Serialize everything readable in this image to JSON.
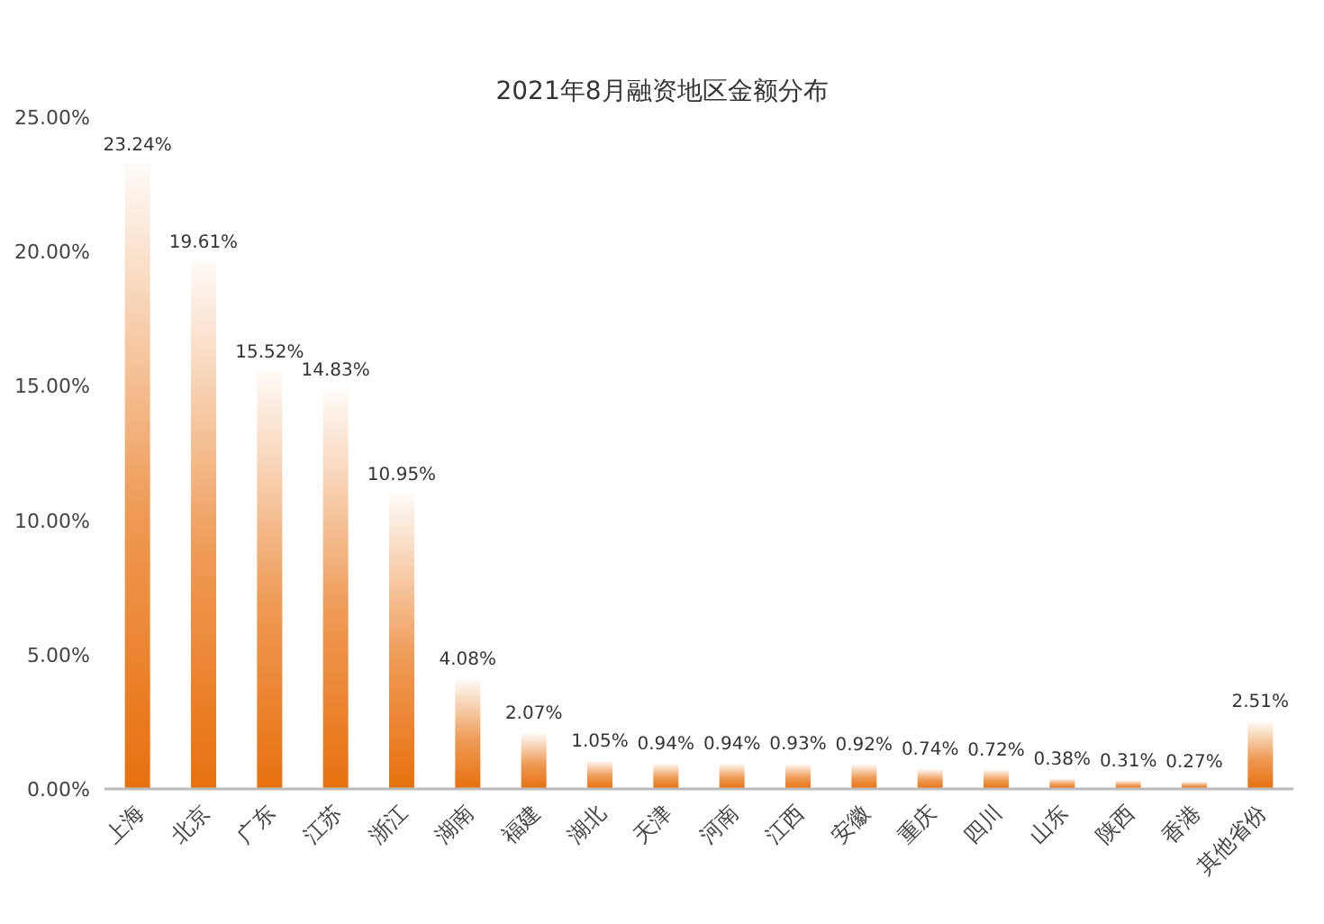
{
  "chart_data": {
    "type": "bar",
    "title": "2021年8月融资地区金额分布",
    "categories": [
      "上海",
      "北京",
      "广东",
      "江苏",
      "浙江",
      "湖南",
      "福建",
      "湖北",
      "天津",
      "河南",
      "江西",
      "安徽",
      "重庆",
      "四川",
      "山东",
      "陕西",
      "香港",
      "其他省份"
    ],
    "values": [
      23.24,
      19.61,
      15.52,
      14.83,
      10.95,
      4.08,
      2.07,
      1.05,
      0.94,
      0.94,
      0.93,
      0.92,
      0.74,
      0.72,
      0.38,
      0.31,
      0.27,
      2.51
    ],
    "value_labels": [
      "23.24%",
      "19.61%",
      "15.52%",
      "14.83%",
      "10.95%",
      "4.08%",
      "2.07%",
      "1.05%",
      "0.94%",
      "0.94%",
      "0.93%",
      "0.92%",
      "0.74%",
      "0.72%",
      "0.38%",
      "0.31%",
      "0.27%",
      "2.51%"
    ],
    "color": "#e8700e",
    "ylim": [
      0,
      25
    ],
    "yticks": [
      {
        "value": 0,
        "label": "0.00%"
      },
      {
        "value": 5,
        "label": "5.00%"
      },
      {
        "value": 10,
        "label": "10.00%"
      },
      {
        "value": 15,
        "label": "15.00%"
      },
      {
        "value": 20,
        "label": "20.00%"
      },
      {
        "value": 25,
        "label": "25.00%"
      }
    ],
    "grid": false
  }
}
